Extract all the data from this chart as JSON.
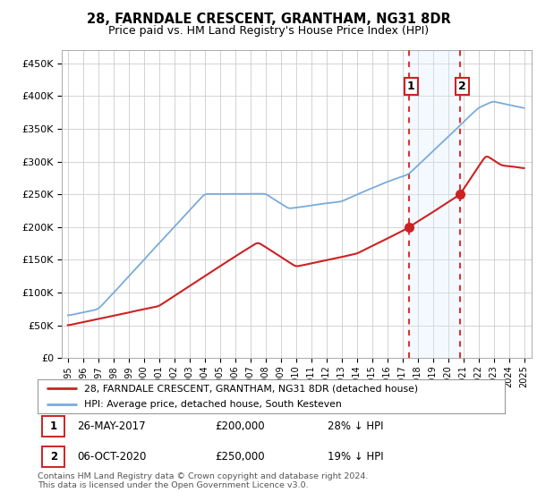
{
  "title": "28, FARNDALE CRESCENT, GRANTHAM, NG31 8DR",
  "subtitle": "Price paid vs. HM Land Registry's House Price Index (HPI)",
  "ylim": [
    0,
    470000
  ],
  "yticks": [
    0,
    50000,
    100000,
    150000,
    200000,
    250000,
    300000,
    350000,
    400000,
    450000
  ],
  "ytick_labels": [
    "£0",
    "£50K",
    "£100K",
    "£150K",
    "£200K",
    "£250K",
    "£300K",
    "£350K",
    "£400K",
    "£450K"
  ],
  "background_color": "#ffffff",
  "grid_color": "#cccccc",
  "hpi_color": "#7aabdb",
  "price_color": "#cc2222",
  "purchase1_date": 2017.42,
  "purchase1_price": 200000,
  "purchase1_label": "1",
  "purchase2_date": 2020.78,
  "purchase2_price": 250000,
  "purchase2_label": "2",
  "vline_color": "#dd3333",
  "highlight_fill": "#ddeeff",
  "legend_label_price": "28, FARNDALE CRESCENT, GRANTHAM, NG31 8DR (detached house)",
  "legend_label_hpi": "HPI: Average price, detached house, South Kesteven",
  "footer": "Contains HM Land Registry data © Crown copyright and database right 2024.\nThis data is licensed under the Open Government Licence v3.0."
}
